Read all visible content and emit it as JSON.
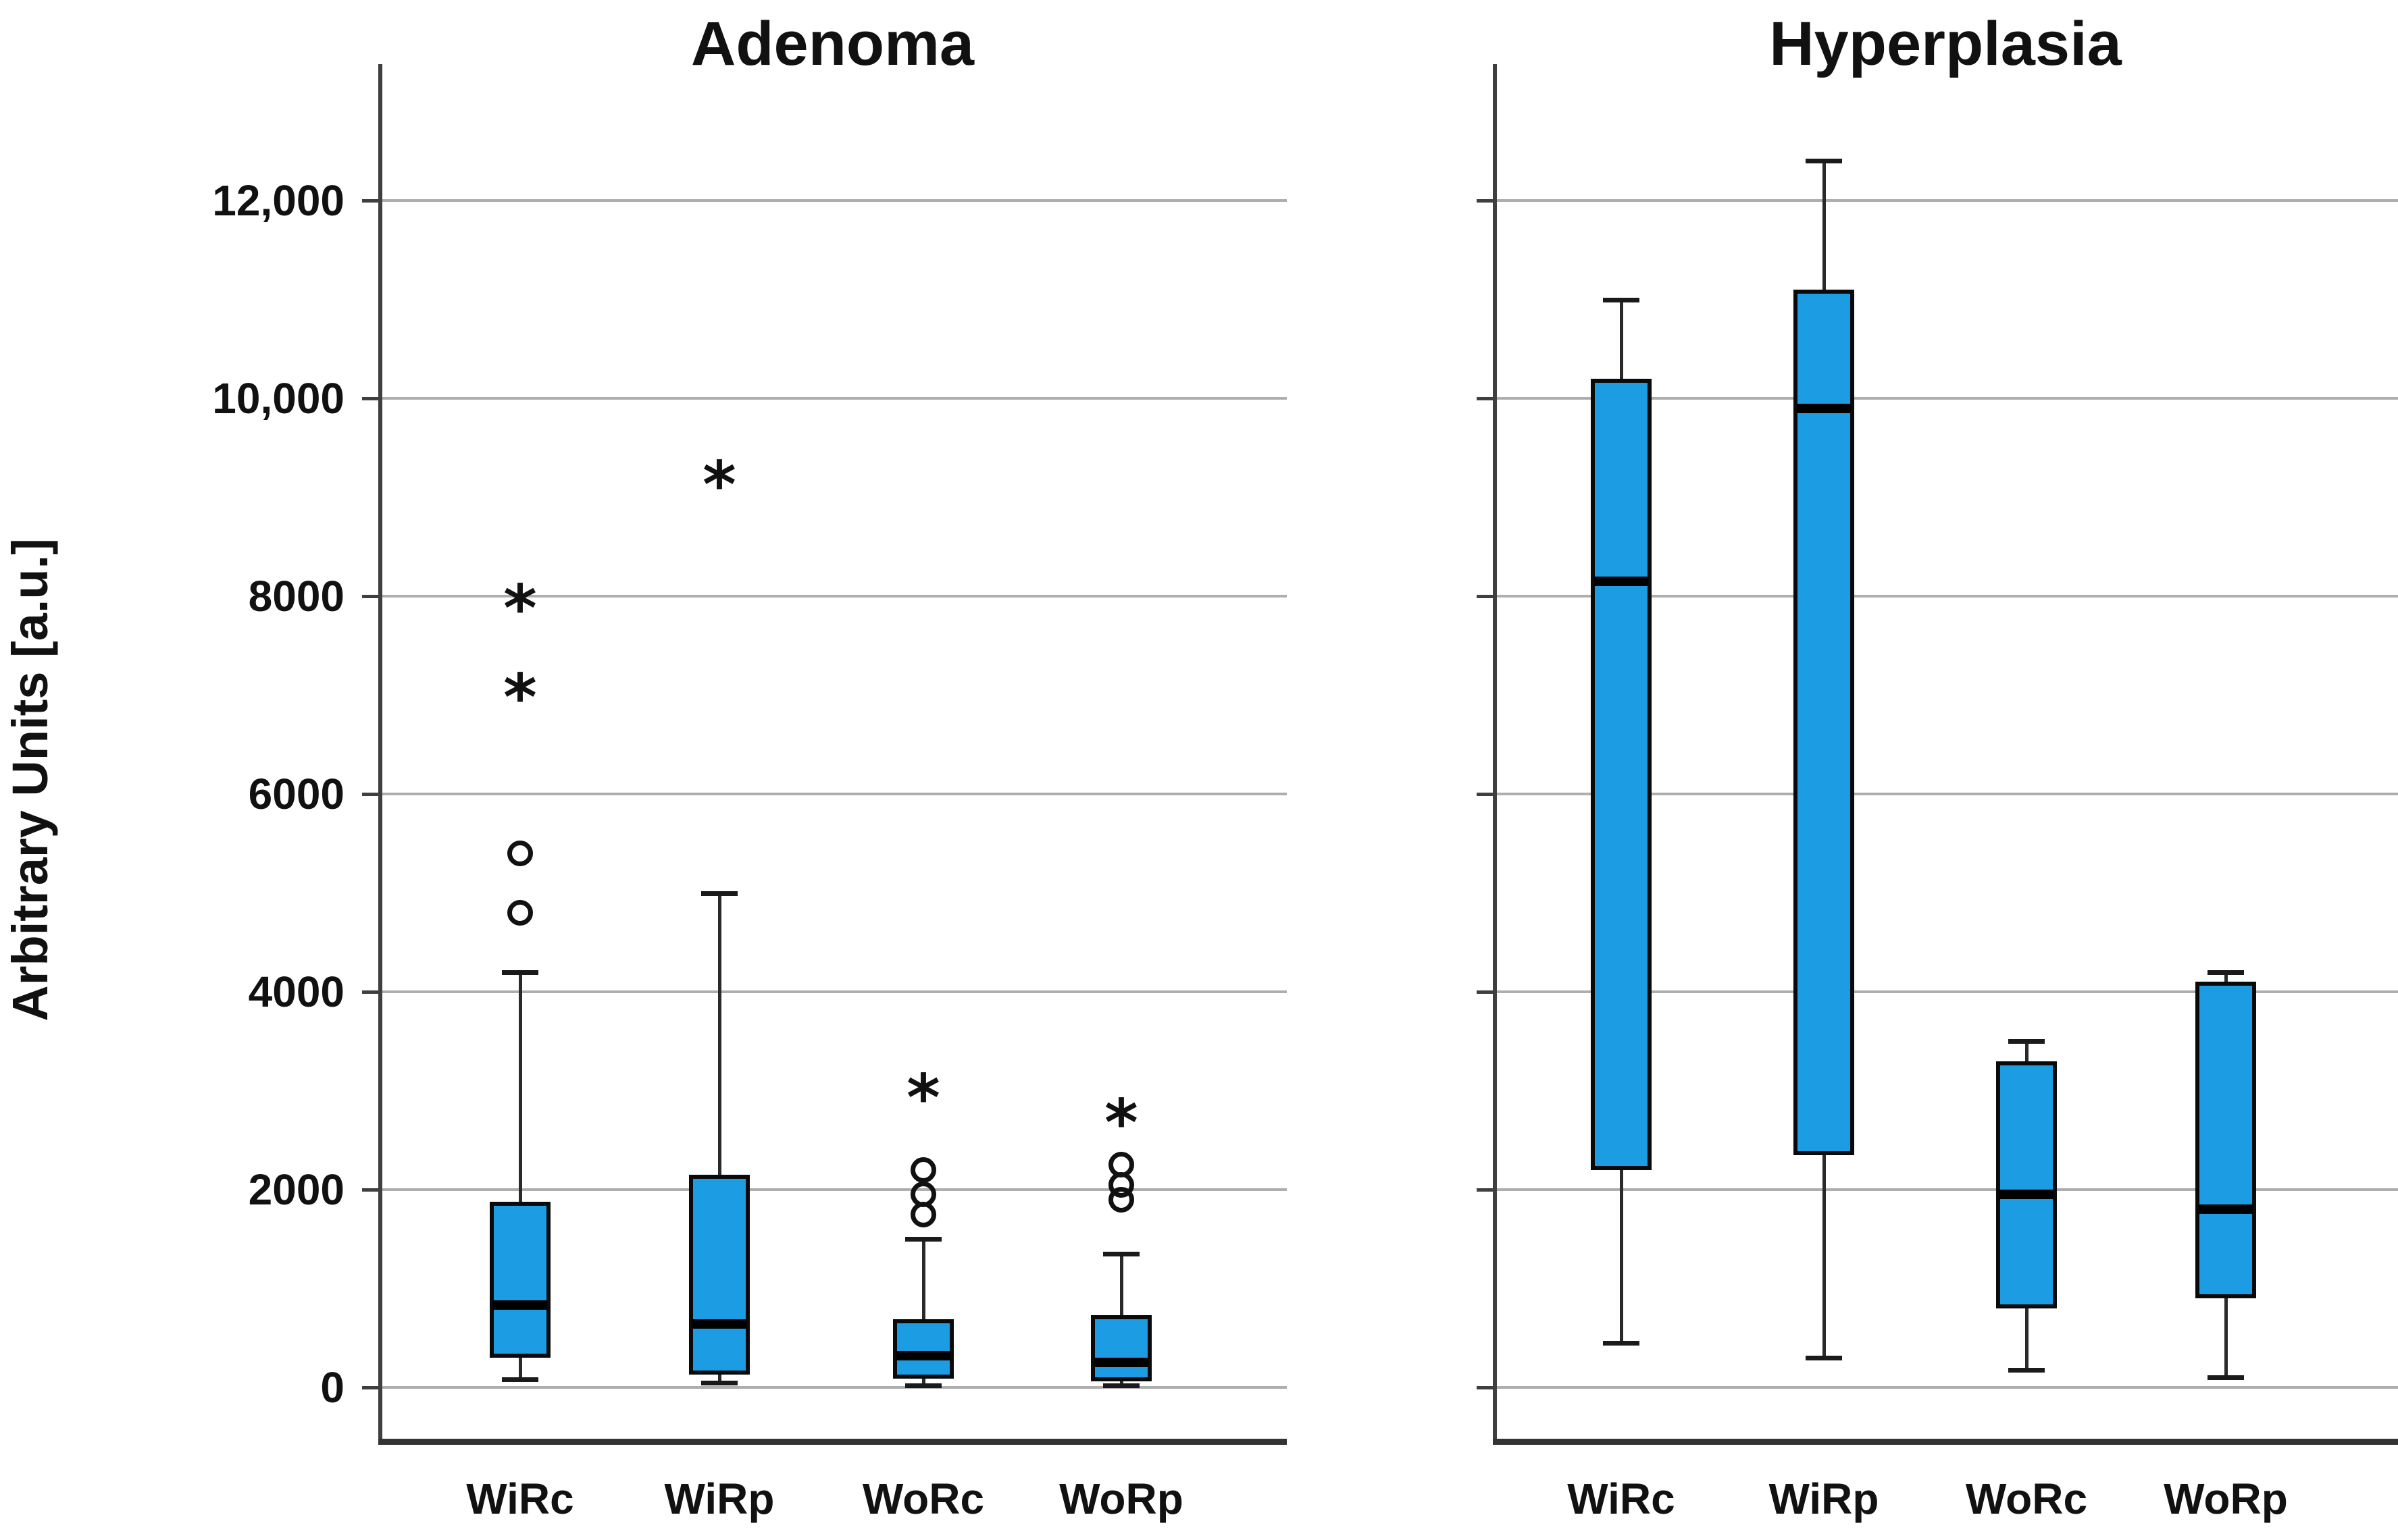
{
  "figure": {
    "background": "#ffffff",
    "kind": "grouped box plots, two panels sharing one y axis"
  },
  "chart_data": [
    {
      "type": "box",
      "title": "Adenoma",
      "ylabel": "Arbitrary Units [a.u.]",
      "categories": [
        "WiRc",
        "WiRp",
        "WoRc",
        "WoRp"
      ],
      "ylim": [
        -550,
        13400
      ],
      "grid": true,
      "y_ticks": [
        {
          "v": 12000,
          "label": "12,000"
        },
        {
          "v": 10000,
          "label": "10,000"
        },
        {
          "v": 8000,
          "label": "8000"
        },
        {
          "v": 6000,
          "label": "6000"
        },
        {
          "v": 4000,
          "label": "4000"
        },
        {
          "v": 2000,
          "label": "2000"
        },
        {
          "v": 0,
          "label": "0"
        }
      ],
      "boxes": [
        {
          "category": "WiRc",
          "whisker_low": 80,
          "q1": 300,
          "median": 830,
          "q3": 1880,
          "whisker_high": 4200,
          "outliers_circle": [
            4800,
            5400
          ],
          "outliers_extreme": [
            7100,
            8000
          ]
        },
        {
          "category": "WiRp",
          "whisker_low": 50,
          "q1": 130,
          "median": 640,
          "q3": 2150,
          "whisker_high": 5000,
          "outliers_circle": [],
          "outliers_extreme": [
            9250
          ]
        },
        {
          "category": "WoRc",
          "whisker_low": 20,
          "q1": 90,
          "median": 320,
          "q3": 690,
          "whisker_high": 1500,
          "outliers_circle": [
            1750,
            1950,
            2200
          ],
          "outliers_extreme": [
            3050
          ]
        },
        {
          "category": "WoRp",
          "whisker_low": 20,
          "q1": 60,
          "median": 250,
          "q3": 730,
          "whisker_high": 1350,
          "outliers_circle": [
            1900,
            2050,
            2250
          ],
          "outliers_extreme": [
            2800
          ]
        }
      ]
    },
    {
      "type": "box",
      "title": "Hyperplasia",
      "ylabel": "Arbitrary Units [a.u.]",
      "categories": [
        "WiRc",
        "WiRp",
        "WoRc",
        "WoRp"
      ],
      "ylim": [
        -550,
        13400
      ],
      "grid": true,
      "y_ticks": [],
      "boxes": [
        {
          "category": "WiRc",
          "whisker_low": 450,
          "q1": 2200,
          "median": 8150,
          "q3": 10200,
          "whisker_high": 11000,
          "outliers_circle": [],
          "outliers_extreme": []
        },
        {
          "category": "WiRp",
          "whisker_low": 300,
          "q1": 2350,
          "median": 9900,
          "q3": 11100,
          "whisker_high": 12400,
          "outliers_circle": [],
          "outliers_extreme": []
        },
        {
          "category": "WoRc",
          "whisker_low": 180,
          "q1": 800,
          "median": 1950,
          "q3": 3300,
          "whisker_high": 3500,
          "outliers_circle": [],
          "outliers_extreme": []
        },
        {
          "category": "WoRp",
          "whisker_low": 100,
          "q1": 900,
          "median": 1800,
          "q3": 4100,
          "whisker_high": 4200,
          "outliers_circle": [],
          "outliers_extreme": []
        }
      ]
    }
  ],
  "colors": {
    "box_fill": "#1b9ce3",
    "box_border": "#0a0a0a",
    "median": "#000000",
    "whisker": "#2a2a2a",
    "gridline": "#aeaeae",
    "axis": "#3f3f3f",
    "text": "#111111"
  },
  "markers": {
    "circle_meaning": "outlier",
    "star_meaning": "extreme outlier",
    "star_glyph": "*"
  }
}
